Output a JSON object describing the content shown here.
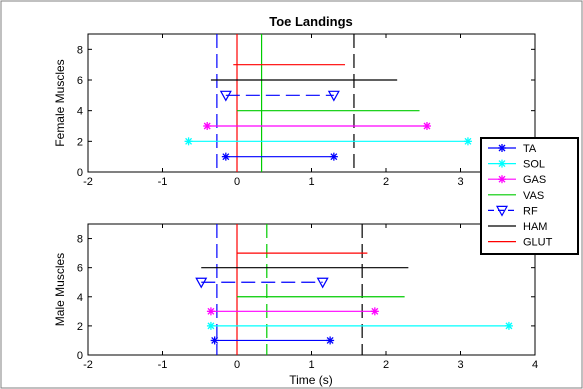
{
  "chart_data": {
    "type": "scatter",
    "title": "Toe Landings",
    "xlabel": "Time (s)",
    "xlim": [
      -2,
      4
    ],
    "ylim": [
      0,
      9
    ],
    "xticks": [
      "-2",
      "-1",
      "0",
      "1",
      "2",
      "3",
      "4"
    ],
    "yticks": [
      "0",
      "2",
      "4",
      "6",
      "8"
    ],
    "legend": {
      "placement": "right",
      "entries": [
        {
          "label": "TA",
          "color": "#0000ff",
          "marker": "star",
          "style": "solid"
        },
        {
          "label": "SOL",
          "color": "#00ffff",
          "marker": "star",
          "style": "solid"
        },
        {
          "label": "GAS",
          "color": "#ff00ff",
          "marker": "star",
          "style": "solid"
        },
        {
          "label": "VAS",
          "color": "#00cc00",
          "marker": "none",
          "style": "solid"
        },
        {
          "label": "RF",
          "color": "#0000ff",
          "marker": "triangle-down",
          "style": "dashed"
        },
        {
          "label": "HAM",
          "color": "#000000",
          "marker": "none",
          "style": "solid"
        },
        {
          "label": "GLUT",
          "color": "#ff0000",
          "marker": "none",
          "style": "solid"
        }
      ]
    },
    "panels": [
      {
        "ylabel": "Female Muscles",
        "series": [
          {
            "name": "TA",
            "y": 1,
            "x_start": -0.15,
            "x_end": 1.3
          },
          {
            "name": "SOL",
            "y": 2,
            "x_start": -0.65,
            "x_end": 3.1
          },
          {
            "name": "GAS",
            "y": 3,
            "x_start": -0.4,
            "x_end": 2.55
          },
          {
            "name": "VAS",
            "y": 4,
            "x_start": 0.0,
            "x_end": 2.45
          },
          {
            "name": "RF",
            "y": 5,
            "x_start": -0.15,
            "x_end": 1.3
          },
          {
            "name": "HAM",
            "y": 6,
            "x_start": -0.35,
            "x_end": 2.15
          },
          {
            "name": "GLUT",
            "y": 7,
            "x_start": -0.05,
            "x_end": 1.45
          }
        ],
        "vlines": [
          {
            "x": -0.27,
            "color": "#0000ff",
            "style": "dashed"
          },
          {
            "x": 0.0,
            "color": "#ff0000",
            "style": "solid"
          },
          {
            "x": 0.33,
            "color": "#00cc00",
            "style": "solid"
          },
          {
            "x": 1.57,
            "color": "#000000",
            "style": "dashed"
          }
        ]
      },
      {
        "ylabel": "Male Muscles",
        "series": [
          {
            "name": "TA",
            "y": 1,
            "x_start": -0.3,
            "x_end": 1.25
          },
          {
            "name": "SOL",
            "y": 2,
            "x_start": -0.35,
            "x_end": 3.65
          },
          {
            "name": "GAS",
            "y": 3,
            "x_start": -0.35,
            "x_end": 1.85
          },
          {
            "name": "VAS",
            "y": 4,
            "x_start": 0.0,
            "x_end": 2.25
          },
          {
            "name": "RF",
            "y": 5,
            "x_start": -0.48,
            "x_end": 1.15
          },
          {
            "name": "HAM",
            "y": 6,
            "x_start": -0.48,
            "x_end": 2.3
          },
          {
            "name": "GLUT",
            "y": 7,
            "x_start": 0.0,
            "x_end": 1.75
          }
        ],
        "vlines": [
          {
            "x": -0.27,
            "color": "#0000ff",
            "style": "dashed"
          },
          {
            "x": 0.0,
            "color": "#ff0000",
            "style": "solid"
          },
          {
            "x": 0.4,
            "color": "#00cc00",
            "style": "dashed"
          },
          {
            "x": 1.68,
            "color": "#000000",
            "style": "dashed"
          }
        ]
      }
    ]
  }
}
